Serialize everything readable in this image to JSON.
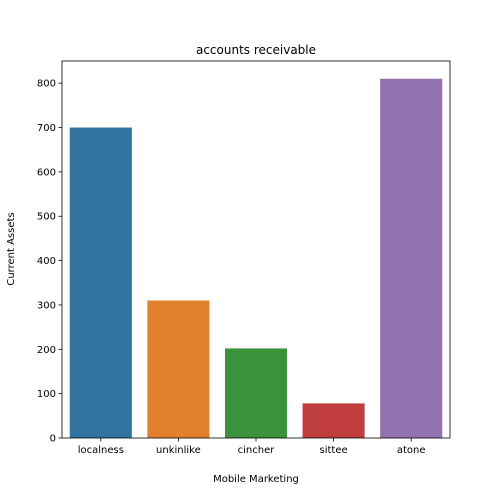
{
  "chart_data": {
    "type": "bar",
    "title": "accounts receivable",
    "xlabel": "Mobile Marketing",
    "ylabel": "Current Assets",
    "categories": [
      "localness",
      "unkinlike",
      "cincher",
      "sittee",
      "atone"
    ],
    "values": [
      700,
      310,
      202,
      78,
      810
    ],
    "colors": [
      "#3274a1",
      "#e1812c",
      "#3a923a",
      "#c03d3e",
      "#9372b2"
    ],
    "ylim": [
      0,
      850
    ],
    "yticks": [
      0,
      100,
      200,
      300,
      400,
      500,
      600,
      700,
      800
    ],
    "grid": false,
    "legend": "none"
  }
}
